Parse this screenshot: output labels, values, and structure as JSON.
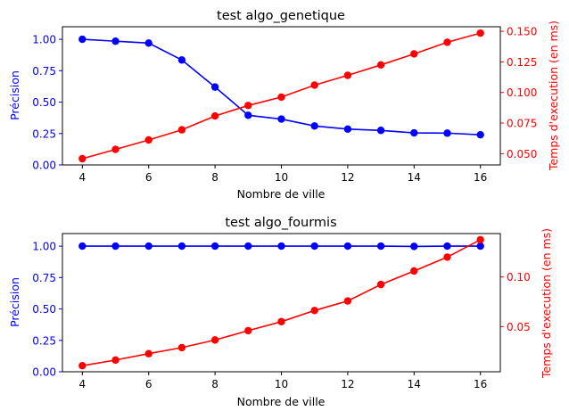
{
  "chart_data": [
    {
      "type": "line",
      "title": "test algo_genetique",
      "xlabel": "Nombre de ville",
      "ylabel_left": "Précision",
      "ylabel_right": "Temps d'execution (en ms)",
      "x": [
        4,
        5,
        6,
        7,
        8,
        9,
        10,
        11,
        12,
        13,
        14,
        15,
        16
      ],
      "xlim": [
        3.4,
        16.6
      ],
      "x_ticks": [
        4,
        6,
        8,
        10,
        12,
        14,
        16
      ],
      "series": [
        {
          "axis": "left",
          "color": "#0000ff",
          "values": [
            1.0,
            0.985,
            0.97,
            0.835,
            0.62,
            0.395,
            0.365,
            0.31,
            0.285,
            0.275,
            0.255,
            0.253,
            0.24
          ]
        },
        {
          "axis": "right",
          "color": "#ff0000",
          "values": [
            0.0459,
            0.0535,
            0.0612,
            0.0695,
            0.0808,
            0.0894,
            0.0962,
            0.106,
            0.114,
            0.1225,
            0.1315,
            0.141,
            0.1485
          ]
        }
      ],
      "ylim_left": [
        0,
        1.1
      ],
      "ylim_right": [
        0.0408,
        0.1537
      ],
      "y_ticks_left": [
        "0.00",
        "0.25",
        "0.50",
        "0.75",
        "1.00"
      ],
      "y_ticks_right": [
        "0.050",
        "0.075",
        "0.100",
        "0.125",
        "0.150"
      ]
    },
    {
      "type": "line",
      "title": "test algo_fourmis",
      "xlabel": "Nombre de ville",
      "ylabel_left": "Précision",
      "ylabel_right": "Temps d'execution (en ms)",
      "x": [
        4,
        5,
        6,
        7,
        8,
        9,
        10,
        11,
        12,
        13,
        14,
        15,
        16
      ],
      "xlim": [
        3.4,
        16.6
      ],
      "x_ticks": [
        4,
        6,
        8,
        10,
        12,
        14,
        16
      ],
      "series": [
        {
          "axis": "left",
          "color": "#0000ff",
          "values": [
            1.0,
            1.0,
            1.0,
            1.0,
            1.0,
            1.0,
            1.0,
            1.0,
            1.0,
            1.0,
            0.998,
            1.0,
            1.0
          ]
        },
        {
          "axis": "right",
          "color": "#ff0000",
          "values": [
            0.0106,
            0.0163,
            0.0227,
            0.0288,
            0.0365,
            0.0459,
            0.055,
            0.0662,
            0.0758,
            0.0924,
            0.106,
            0.12,
            0.1375
          ]
        }
      ],
      "ylim_left": [
        0,
        1.1
      ],
      "ylim_right": [
        0.0045,
        0.1437
      ],
      "y_ticks_left": [
        "0.00",
        "0.25",
        "0.50",
        "0.75",
        "1.00"
      ],
      "y_ticks_right": [
        "0.05",
        "0.10"
      ]
    }
  ]
}
